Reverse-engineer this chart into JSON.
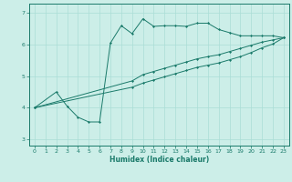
{
  "xlabel": "Humidex (Indice chaleur)",
  "bg_color": "#cceee8",
  "line_color": "#1a7a6a",
  "grid_color": "#aaddd6",
  "xlim": [
    -0.5,
    23.5
  ],
  "ylim": [
    2.8,
    7.3
  ],
  "xticks": [
    0,
    1,
    2,
    3,
    4,
    5,
    6,
    7,
    8,
    9,
    10,
    11,
    12,
    13,
    14,
    15,
    16,
    17,
    18,
    19,
    20,
    21,
    22,
    23
  ],
  "yticks": [
    3,
    4,
    5,
    6,
    7
  ],
  "curve1_x": [
    0,
    2,
    3,
    4,
    5,
    6,
    7,
    8,
    9,
    10,
    11,
    12,
    13,
    14,
    15,
    16,
    17,
    18,
    19,
    20,
    21,
    22,
    23
  ],
  "curve1_y": [
    4.0,
    4.5,
    4.05,
    3.7,
    3.55,
    3.55,
    6.05,
    6.6,
    6.35,
    6.82,
    6.58,
    6.6,
    6.6,
    6.58,
    6.68,
    6.68,
    6.48,
    6.38,
    6.28,
    6.28,
    6.28,
    6.28,
    6.22
  ],
  "curve2_x": [
    0,
    9,
    10,
    11,
    12,
    13,
    14,
    15,
    16,
    17,
    18,
    19,
    20,
    21,
    22,
    23
  ],
  "curve2_y": [
    4.0,
    4.85,
    5.05,
    5.15,
    5.25,
    5.35,
    5.45,
    5.55,
    5.62,
    5.68,
    5.78,
    5.88,
    5.98,
    6.08,
    6.15,
    6.22
  ],
  "curve3_x": [
    0,
    9,
    10,
    11,
    12,
    13,
    14,
    15,
    16,
    17,
    18,
    19,
    20,
    21,
    22,
    23
  ],
  "curve3_y": [
    4.0,
    4.65,
    4.78,
    4.88,
    4.98,
    5.08,
    5.18,
    5.28,
    5.35,
    5.42,
    5.52,
    5.62,
    5.75,
    5.9,
    6.02,
    6.22
  ]
}
